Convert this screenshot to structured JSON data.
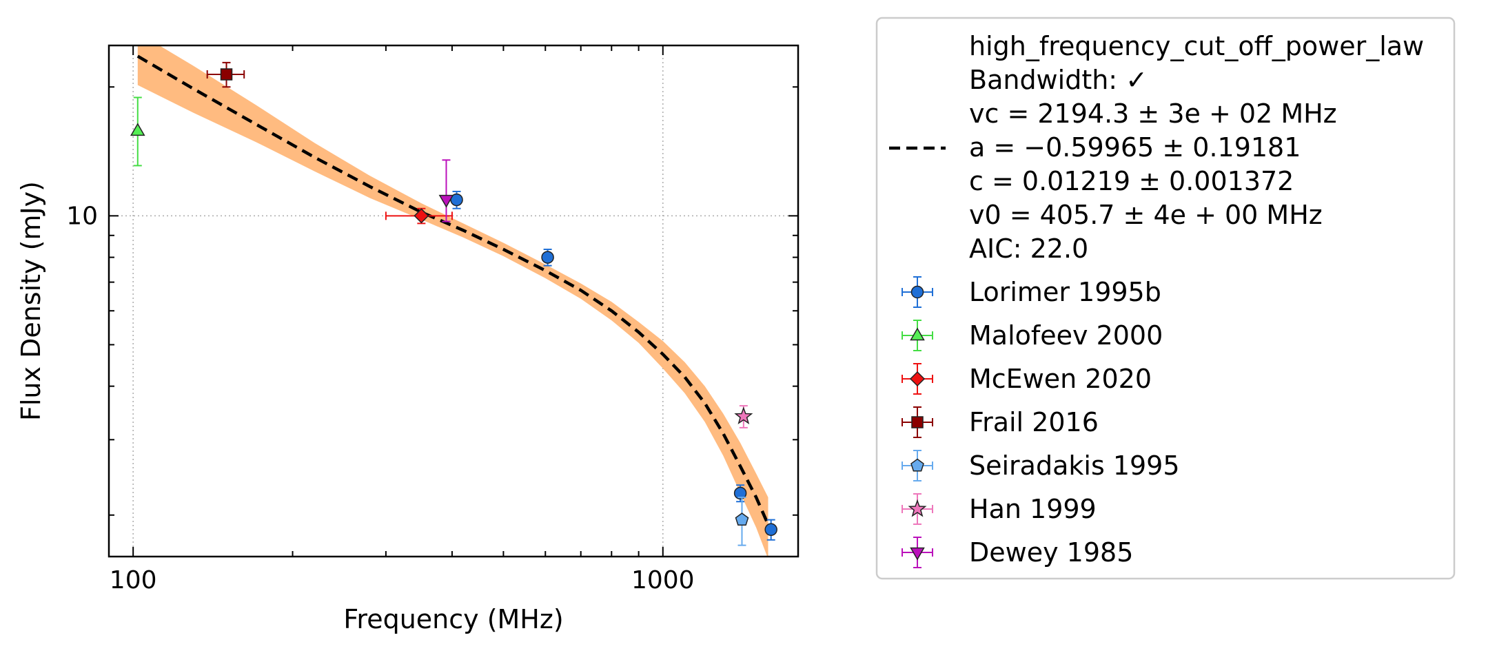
{
  "chart_data": {
    "type": "scatter",
    "xlabel": "Frequency (MHz)",
    "ylabel": "Flux Density (mJy)",
    "xscale": "log",
    "yscale": "log",
    "xlim": [
      90,
      1800
    ],
    "ylim": [
      1.6,
      25
    ],
    "xticks": [
      {
        "value": 100,
        "label": "100"
      },
      {
        "value": 1000,
        "label": "1000"
      }
    ],
    "yticks": [
      {
        "value": 10,
        "label": "10"
      }
    ],
    "grid": "dotted, major ticks",
    "legend": "outside right",
    "model": {
      "legend_lines": [
        "high_frequency_cut_off_power_law",
        "Bandwidth: ✓",
        "vc = 2194.3 ± 3e + 02 MHz",
        "a = −0.59965 ± 0.19181",
        "c = 0.01219 ± 0.001372",
        "v0 = 405.7 ± 4e + 00 MHz",
        "AIC: 22.0"
      ],
      "line_style": "dashed",
      "line_color": "#000000",
      "band_color": "#ffbb80",
      "line": [
        [
          102,
          23.6
        ],
        [
          130,
          19.8
        ],
        [
          170,
          16.4
        ],
        [
          220,
          13.7
        ],
        [
          280,
          11.7
        ],
        [
          350,
          10.2
        ],
        [
          420,
          9.25
        ],
        [
          500,
          8.35
        ],
        [
          600,
          7.45
        ],
        [
          700,
          6.7
        ],
        [
          800,
          6.0
        ],
        [
          900,
          5.35
        ],
        [
          1000,
          4.75
        ],
        [
          1100,
          4.2
        ],
        [
          1200,
          3.65
        ],
        [
          1300,
          3.1
        ],
        [
          1400,
          2.6
        ],
        [
          1500,
          2.2
        ],
        [
          1580,
          1.9
        ]
      ],
      "band_upper": [
        [
          102,
          26.8
        ],
        [
          130,
          22.4
        ],
        [
          170,
          18.2
        ],
        [
          220,
          14.8
        ],
        [
          280,
          12.4
        ],
        [
          350,
          10.7
        ],
        [
          420,
          9.6
        ],
        [
          500,
          8.65
        ],
        [
          600,
          7.7
        ],
        [
          700,
          6.95
        ],
        [
          800,
          6.3
        ],
        [
          900,
          5.65
        ],
        [
          1000,
          5.1
        ],
        [
          1100,
          4.55
        ],
        [
          1200,
          4.0
        ],
        [
          1300,
          3.45
        ],
        [
          1400,
          2.95
        ],
        [
          1500,
          2.5
        ],
        [
          1580,
          2.2
        ]
      ],
      "band_lower": [
        [
          102,
          20.2
        ],
        [
          130,
          17.4
        ],
        [
          170,
          14.9
        ],
        [
          220,
          12.7
        ],
        [
          280,
          11.0
        ],
        [
          350,
          9.8
        ],
        [
          420,
          8.9
        ],
        [
          500,
          8.05
        ],
        [
          600,
          7.15
        ],
        [
          700,
          6.4
        ],
        [
          800,
          5.7
        ],
        [
          900,
          5.05
        ],
        [
          1000,
          4.4
        ],
        [
          1100,
          3.85
        ],
        [
          1200,
          3.3
        ],
        [
          1300,
          2.75
        ],
        [
          1400,
          2.25
        ],
        [
          1500,
          1.87
        ],
        [
          1580,
          1.58
        ]
      ]
    },
    "series": [
      {
        "name": "Lorimer 1995b",
        "marker": "circle",
        "color": "#1f6fd6",
        "ecolor": "#1f6fd6",
        "points": [
          {
            "x": 408,
            "y": 10.9,
            "yerr": [
              0.5,
              0.5
            ]
          },
          {
            "x": 606,
            "y": 8.0,
            "yerr": [
              0.35,
              0.35
            ]
          },
          {
            "x": 1400,
            "y": 2.25,
            "yerr": [
              0.1,
              0.1
            ]
          },
          {
            "x": 1600,
            "y": 1.85,
            "yerr": [
              0.1,
              0.1
            ]
          }
        ]
      },
      {
        "name": "Malofeev 2000",
        "marker": "triangle-up",
        "color": "#55ee55",
        "ecolor": "#44dd44",
        "points": [
          {
            "x": 102,
            "y": 15.8,
            "yerr": [
              2.7,
              3.1
            ]
          }
        ]
      },
      {
        "name": "McEwen 2020",
        "marker": "diamond",
        "color": "#ee1111",
        "ecolor": "#ee1111",
        "points": [
          {
            "x": 350,
            "y": 10.0,
            "yerr": [
              0.4,
              0.4
            ],
            "xerr": [
              50,
              50
            ]
          }
        ]
      },
      {
        "name": "Frail 2016",
        "marker": "square",
        "color": "#8b0000",
        "ecolor": "#8b0000",
        "points": [
          {
            "x": 150,
            "y": 21.4,
            "yerr": [
              1.4,
              1.4
            ],
            "xerr": [
              12,
              12
            ]
          }
        ]
      },
      {
        "name": "Seiradakis 1995",
        "marker": "pentagon",
        "color": "#66aaee",
        "ecolor": "#66aaee",
        "points": [
          {
            "x": 1410,
            "y": 1.95,
            "yerr": [
              0.25,
              0.25
            ]
          }
        ]
      },
      {
        "name": "Han 1999",
        "marker": "star",
        "color": "#ee77bb",
        "ecolor": "#ee77bb",
        "points": [
          {
            "x": 1420,
            "y": 3.4,
            "yerr": [
              0.2,
              0.2
            ]
          }
        ]
      },
      {
        "name": "Dewey 1985",
        "marker": "triangle-down",
        "color": "#bb11bb",
        "ecolor": "#bb11bb",
        "points": [
          {
            "x": 390,
            "y": 10.9,
            "yerr": [
              1.2,
              2.6
            ]
          }
        ]
      }
    ]
  }
}
